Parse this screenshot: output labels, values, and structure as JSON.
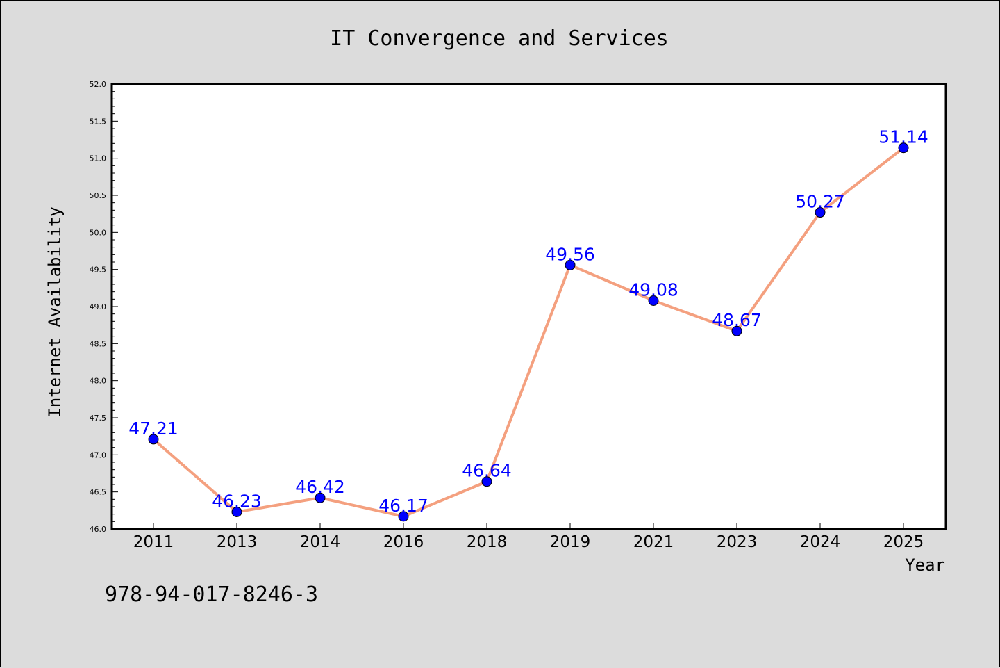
{
  "chart_data": {
    "type": "line",
    "title": "IT Convergence and Services",
    "xlabel": "Year",
    "ylabel": "Internet Availability",
    "categories": [
      "2011",
      "2013",
      "2014",
      "2016",
      "2018",
      "2019",
      "2021",
      "2023",
      "2024",
      "2025"
    ],
    "series": [
      {
        "values": [
          47.21,
          46.23,
          46.42,
          46.17,
          46.64,
          49.56,
          49.08,
          48.67,
          50.27,
          51.14
        ],
        "line_color": "#f4a07f",
        "marker_color": "#0000ff"
      }
    ],
    "data_labels": [
      "47.21",
      "46.23",
      "46.42",
      "46.17",
      "46.64",
      "49.56",
      "49.08",
      "48.67",
      "50.27",
      "51.14"
    ],
    "ylim": [
      46.0,
      52.0
    ],
    "yticks": [
      "46.0",
      "46.5",
      "47.0",
      "47.5",
      "48.0",
      "48.5",
      "49.0",
      "49.5",
      "50.0",
      "50.5",
      "51.0",
      "51.5",
      "52.0"
    ],
    "grid": false,
    "annotation": "978-94-017-8246-3",
    "colors": {
      "background": "#dcdcdc",
      "plot_background": "#ffffff",
      "label_color": "#0000ff"
    }
  }
}
